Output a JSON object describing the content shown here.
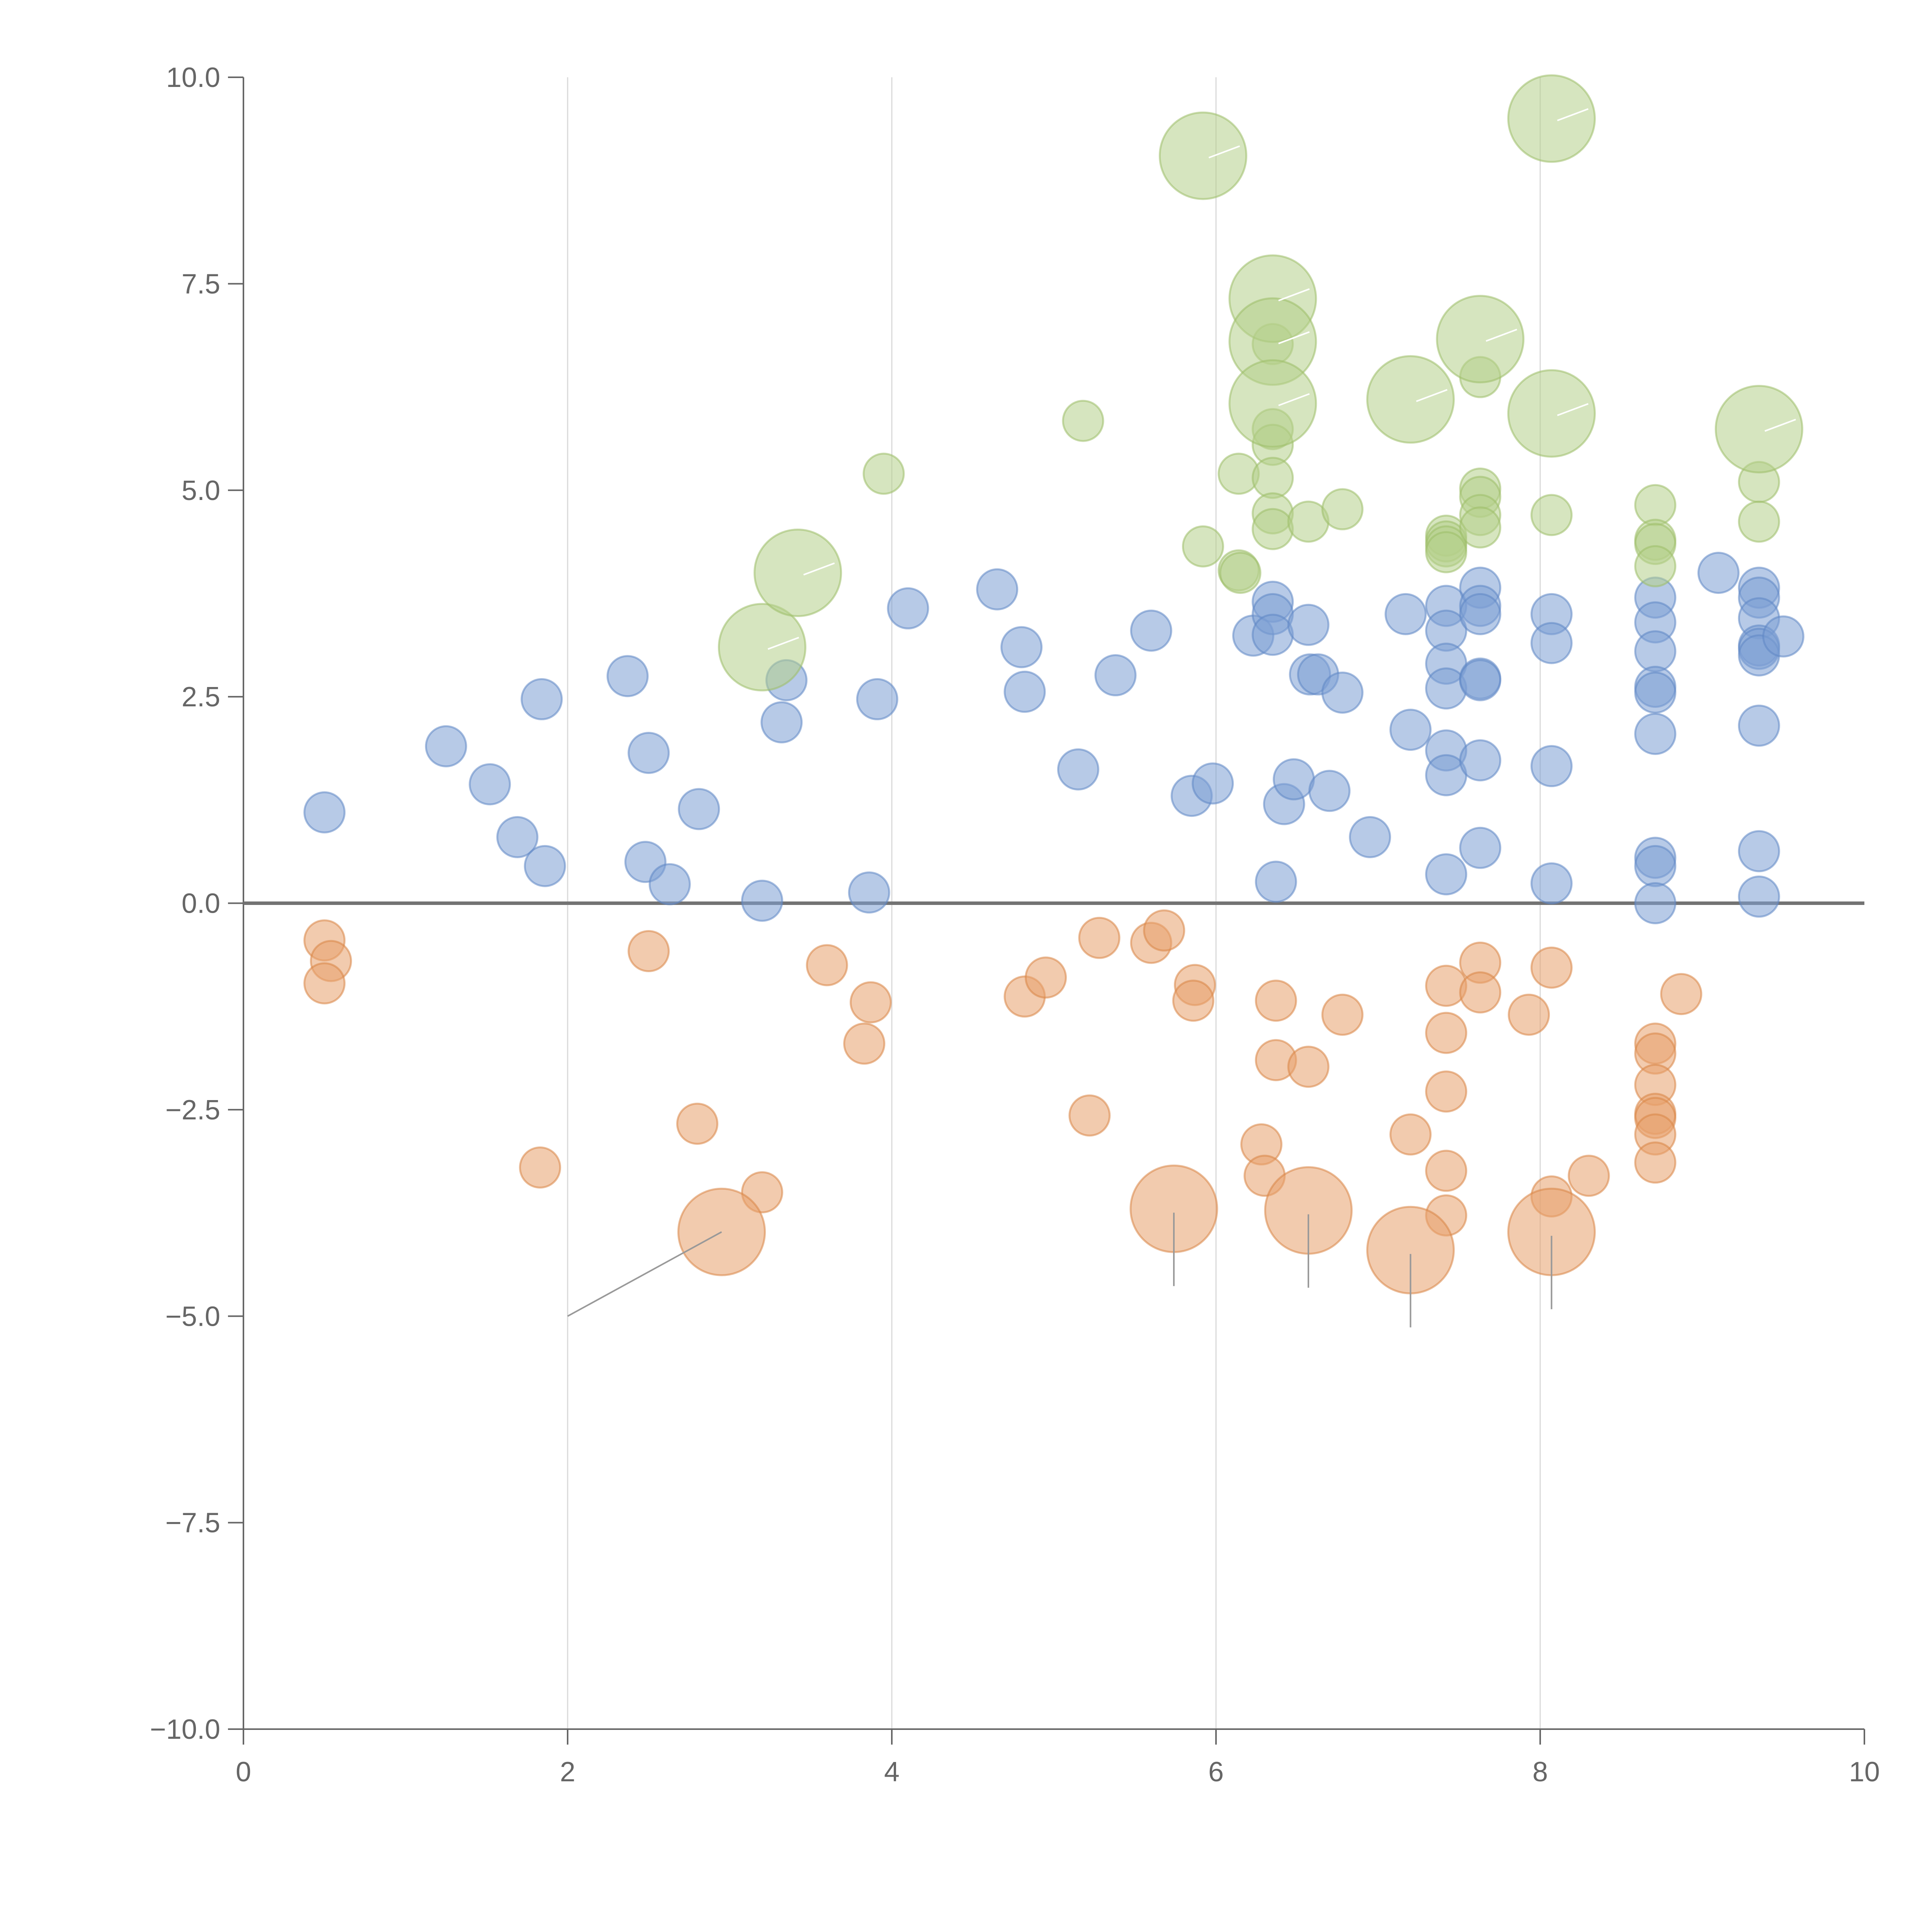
{
  "colors": {
    "blue": "#7b9fd3",
    "orange": "#e8a16b",
    "green": "#b4cf8a",
    "blue_stroke": "#5f86c4",
    "orange_stroke": "#d98545",
    "green_stroke": "#9cbe68",
    "axis": "#666666",
    "grid": "#d9d9d9",
    "zero_line": "#737373",
    "leader_light": "#ffffff",
    "leader_dark": "#999999"
  },
  "chart_data": {
    "type": "scatter",
    "title": "",
    "xlabel": "",
    "ylabel": "",
    "xlim": [
      0,
      10
    ],
    "ylim": [
      -10,
      10
    ],
    "x_ticks": [
      0,
      2,
      4,
      6,
      8,
      10
    ],
    "x_tick_labels": [
      "0",
      "2",
      "4",
      "6",
      "8",
      "10"
    ],
    "y_ticks": [
      10,
      7.5,
      5,
      2.5,
      0,
      -2.5,
      -5,
      -7.5,
      -10
    ],
    "y_tick_labels": [
      "10.0",
      "7.5",
      "5.0",
      "2.5",
      "0.0",
      "−2.5",
      "−5.0",
      "−7.5",
      "−10.0"
    ],
    "vertical_grid": [
      2,
      4,
      6,
      8
    ],
    "horizontal_grid": false,
    "zero_line": true,
    "legend": "none",
    "series": [
      {
        "name": "blue",
        "color": "blue",
        "points": [
          [
            0.5,
            1.1
          ],
          [
            1.25,
            1.9
          ],
          [
            1.52,
            1.44
          ],
          [
            1.69,
            0.8
          ],
          [
            1.86,
            0.45
          ],
          [
            1.84,
            2.47
          ],
          [
            2.37,
            2.75
          ],
          [
            2.48,
            0.5
          ],
          [
            2.5,
            1.82
          ],
          [
            2.63,
            0.23
          ],
          [
            2.81,
            1.14
          ],
          [
            3.2,
            0.03
          ],
          [
            3.32,
            2.19
          ],
          [
            3.35,
            2.7
          ],
          [
            3.86,
            0.13
          ],
          [
            3.91,
            2.47
          ],
          [
            4.1,
            3.57
          ],
          [
            4.65,
            3.8
          ],
          [
            4.8,
            3.1
          ],
          [
            4.82,
            2.56
          ],
          [
            5.15,
            1.62
          ],
          [
            5.38,
            2.76
          ],
          [
            5.6,
            3.3
          ],
          [
            5.85,
            1.3
          ],
          [
            5.98,
            1.45
          ],
          [
            6.23,
            3.24
          ],
          [
            6.35,
            3.65
          ],
          [
            6.35,
            3.5
          ],
          [
            6.35,
            3.25
          ],
          [
            6.37,
            0.26
          ],
          [
            6.42,
            1.2
          ],
          [
            6.48,
            1.5
          ],
          [
            6.57,
            3.37
          ],
          [
            6.58,
            2.77
          ],
          [
            6.63,
            2.77
          ],
          [
            6.7,
            1.36
          ],
          [
            6.78,
            2.55
          ],
          [
            6.95,
            0.8
          ],
          [
            7.17,
            3.5
          ],
          [
            7.2,
            2.1
          ],
          [
            7.42,
            3.6
          ],
          [
            7.42,
            3.3
          ],
          [
            7.42,
            2.9
          ],
          [
            7.42,
            2.6
          ],
          [
            7.42,
            1.85
          ],
          [
            7.42,
            1.55
          ],
          [
            7.42,
            0.35
          ],
          [
            7.63,
            3.82
          ],
          [
            7.63,
            3.6
          ],
          [
            7.63,
            3.5
          ],
          [
            7.63,
            2.72
          ],
          [
            7.63,
            2.7
          ],
          [
            7.63,
            1.73
          ],
          [
            7.63,
            0.67
          ],
          [
            8.07,
            3.5
          ],
          [
            8.07,
            3.15
          ],
          [
            8.07,
            1.66
          ],
          [
            8.07,
            0.24
          ],
          [
            8.71,
            3.7
          ],
          [
            8.71,
            3.4
          ],
          [
            8.71,
            3.05
          ],
          [
            8.71,
            2.62
          ],
          [
            8.71,
            2.55
          ],
          [
            8.71,
            2.05
          ],
          [
            8.71,
            0.55
          ],
          [
            8.71,
            0.45
          ],
          [
            8.71,
            0.0
          ],
          [
            9.1,
            4.0
          ],
          [
            9.35,
            3.82
          ],
          [
            9.35,
            3.7
          ],
          [
            9.35,
            3.45
          ],
          [
            9.35,
            3.12
          ],
          [
            9.35,
            3.08
          ],
          [
            9.35,
            3.0
          ],
          [
            9.35,
            2.15
          ],
          [
            9.35,
            0.63
          ],
          [
            9.35,
            0.08
          ],
          [
            9.5,
            3.23
          ]
        ]
      },
      {
        "name": "orange",
        "color": "orange",
        "points": [
          [
            0.5,
            -0.45
          ],
          [
            0.54,
            -0.7
          ],
          [
            0.5,
            -0.97
          ],
          [
            1.83,
            -3.2
          ],
          [
            2.5,
            -0.58
          ],
          [
            2.8,
            -2.67
          ],
          [
            3.2,
            -3.5
          ],
          [
            3.6,
            -0.75
          ],
          [
            3.83,
            -1.7
          ],
          [
            3.87,
            -1.2
          ],
          [
            4.82,
            -1.13
          ],
          [
            4.95,
            -0.9
          ],
          [
            5.22,
            -2.57
          ],
          [
            5.28,
            -0.42
          ],
          [
            5.6,
            -0.48
          ],
          [
            5.68,
            -0.33
          ],
          [
            5.87,
            -0.99
          ],
          [
            5.86,
            -1.18
          ],
          [
            6.28,
            -2.92
          ],
          [
            6.3,
            -3.3
          ],
          [
            6.37,
            -1.18
          ],
          [
            6.37,
            -1.9
          ],
          [
            6.57,
            -1.98
          ],
          [
            6.78,
            -1.35
          ],
          [
            7.2,
            -2.8
          ],
          [
            7.42,
            -1.0
          ],
          [
            7.42,
            -1.57
          ],
          [
            7.42,
            -2.28
          ],
          [
            7.42,
            -3.24
          ],
          [
            7.42,
            -3.78
          ],
          [
            7.63,
            -0.72
          ],
          [
            7.63,
            -1.08
          ],
          [
            7.93,
            -1.35
          ],
          [
            8.07,
            -0.78
          ],
          [
            8.07,
            -3.55
          ],
          [
            8.3,
            -3.3
          ],
          [
            8.71,
            -1.7
          ],
          [
            8.71,
            -1.82
          ],
          [
            8.71,
            -2.2
          ],
          [
            8.71,
            -2.55
          ],
          [
            8.71,
            -2.6
          ],
          [
            8.71,
            -2.8
          ],
          [
            8.71,
            -3.14
          ],
          [
            8.87,
            -1.1
          ]
        ],
        "large": [
          [
            2.95,
            -3.98
          ],
          [
            5.74,
            -3.7
          ],
          [
            6.57,
            -3.72
          ],
          [
            7.2,
            -4.2
          ],
          [
            8.07,
            -3.98
          ]
        ]
      },
      {
        "name": "green",
        "color": "green",
        "points": [
          [
            3.95,
            5.2
          ],
          [
            5.18,
            5.84
          ],
          [
            5.92,
            4.32
          ],
          [
            6.14,
            5.2
          ],
          [
            6.14,
            4.03
          ],
          [
            6.15,
            4.0
          ],
          [
            6.35,
            6.77
          ],
          [
            6.35,
            5.74
          ],
          [
            6.35,
            5.55
          ],
          [
            6.35,
            5.15
          ],
          [
            6.35,
            4.72
          ],
          [
            6.35,
            4.53
          ],
          [
            6.57,
            4.62
          ],
          [
            6.78,
            4.77
          ],
          [
            7.42,
            4.45
          ],
          [
            7.42,
            4.38
          ],
          [
            7.42,
            4.32
          ],
          [
            7.42,
            4.25
          ],
          [
            7.63,
            6.37
          ],
          [
            7.63,
            5.02
          ],
          [
            7.63,
            4.92
          ],
          [
            7.63,
            4.7
          ],
          [
            7.63,
            4.55
          ],
          [
            8.07,
            4.7
          ],
          [
            8.71,
            4.82
          ],
          [
            8.71,
            4.4
          ],
          [
            8.71,
            4.35
          ],
          [
            8.71,
            4.08
          ],
          [
            9.35,
            5.1
          ],
          [
            9.35,
            4.62
          ]
        ],
        "large": [
          [
            3.2,
            3.1
          ],
          [
            3.42,
            4.0
          ],
          [
            5.92,
            9.05
          ],
          [
            6.35,
            7.32
          ],
          [
            6.35,
            6.8
          ],
          [
            6.35,
            6.05
          ],
          [
            7.2,
            6.1
          ],
          [
            7.63,
            6.83
          ],
          [
            8.07,
            9.5
          ],
          [
            8.07,
            5.93
          ],
          [
            9.35,
            5.74
          ]
        ]
      }
    ]
  }
}
